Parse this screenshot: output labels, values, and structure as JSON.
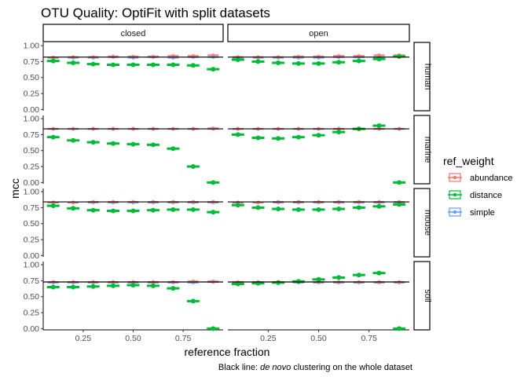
{
  "chart_data": {
    "type": "scatter",
    "title": "OTU Quality: OptiFit with split datasets",
    "xlabel": "reference fraction",
    "ylabel": "mcc",
    "caption_prefix": "Black line: ",
    "caption_italic": "de novo",
    "caption_suffix": " clustering on the whole dataset",
    "legend_title": "ref_weight",
    "legend_placement": "right",
    "columns": [
      "closed",
      "open"
    ],
    "rows": [
      "human",
      "marine",
      "mouse",
      "soil"
    ],
    "xlim": [
      0.05,
      0.95
    ],
    "ylim": [
      -0.02,
      1.05
    ],
    "x_ticks": [
      0.25,
      0.5,
      0.75
    ],
    "x_tick_labels": [
      "0.25",
      "0.50",
      "0.75"
    ],
    "y_ticks": [
      0,
      0.25,
      0.5,
      0.75,
      1.0
    ],
    "y_tick_labels": [
      "0.00",
      "0.25",
      "0.50",
      "0.75",
      "1.00"
    ],
    "x": [
      0.1,
      0.2,
      0.3,
      0.4,
      0.5,
      0.6,
      0.7,
      0.8,
      0.9
    ],
    "grid": false,
    "colors": {
      "abundance": "#F8766D",
      "distance": "#00BA38",
      "simple": "#619CFF",
      "reference_line": "#000000"
    },
    "series_names": [
      "abundance",
      "distance",
      "simple"
    ],
    "denovo_reference": {
      "human": 0.82,
      "marine": 0.84,
      "mouse": 0.84,
      "soil": 0.73
    },
    "panels": [
      {
        "column": "closed",
        "row": "human",
        "abundance": [
          0.81,
          0.82,
          0.82,
          0.83,
          0.83,
          0.83,
          0.84,
          0.84,
          0.85
        ],
        "distance": [
          0.76,
          0.73,
          0.71,
          0.7,
          0.7,
          0.7,
          0.7,
          0.69,
          0.63
        ],
        "simple": [
          0.81,
          0.81,
          0.81,
          0.82,
          0.81,
          0.82,
          0.81,
          0.82,
          0.82
        ]
      },
      {
        "column": "open",
        "row": "human",
        "abundance": [
          0.82,
          0.82,
          0.82,
          0.83,
          0.83,
          0.84,
          0.84,
          0.85,
          0.85
        ],
        "distance": [
          0.78,
          0.75,
          0.73,
          0.72,
          0.72,
          0.74,
          0.76,
          0.79,
          0.83
        ],
        "simple": [
          0.81,
          0.81,
          0.81,
          0.81,
          0.81,
          0.82,
          0.82,
          0.82,
          0.83
        ]
      },
      {
        "column": "closed",
        "row": "marine",
        "abundance": [
          0.84,
          0.84,
          0.84,
          0.84,
          0.84,
          0.84,
          0.84,
          0.84,
          0.85
        ],
        "distance": [
          0.71,
          0.66,
          0.63,
          0.61,
          0.6,
          0.59,
          0.53,
          0.25,
          0.0
        ],
        "simple": [
          0.84,
          0.84,
          0.84,
          0.84,
          0.84,
          0.84,
          0.84,
          0.84,
          0.84
        ]
      },
      {
        "column": "open",
        "row": "marine",
        "abundance": [
          0.84,
          0.84,
          0.84,
          0.84,
          0.84,
          0.84,
          0.84,
          0.84,
          0.84
        ],
        "distance": [
          0.75,
          0.7,
          0.69,
          0.71,
          0.74,
          0.79,
          0.84,
          0.89,
          0.0
        ],
        "simple": [
          0.84,
          0.84,
          0.84,
          0.84,
          0.84,
          0.84,
          0.84,
          0.84,
          0.84
        ]
      },
      {
        "column": "closed",
        "row": "mouse",
        "abundance": [
          0.83,
          0.83,
          0.84,
          0.84,
          0.84,
          0.84,
          0.84,
          0.84,
          0.84
        ],
        "distance": [
          0.78,
          0.74,
          0.71,
          0.7,
          0.7,
          0.71,
          0.72,
          0.72,
          0.68
        ],
        "simple": [
          0.83,
          0.83,
          0.83,
          0.83,
          0.83,
          0.83,
          0.83,
          0.83,
          0.83
        ]
      },
      {
        "column": "open",
        "row": "mouse",
        "abundance": [
          0.83,
          0.83,
          0.84,
          0.84,
          0.84,
          0.84,
          0.84,
          0.84,
          0.84
        ],
        "distance": [
          0.79,
          0.75,
          0.73,
          0.72,
          0.72,
          0.73,
          0.75,
          0.77,
          0.8
        ],
        "simple": [
          0.83,
          0.83,
          0.83,
          0.83,
          0.83,
          0.83,
          0.83,
          0.83,
          0.83
        ]
      },
      {
        "column": "closed",
        "row": "soil",
        "abundance": [
          0.73,
          0.73,
          0.73,
          0.73,
          0.73,
          0.73,
          0.73,
          0.74,
          0.74
        ],
        "distance": [
          0.65,
          0.65,
          0.66,
          0.67,
          0.68,
          0.67,
          0.63,
          0.43,
          0.0
        ],
        "simple": [
          0.72,
          0.72,
          0.72,
          0.72,
          0.72,
          0.72,
          0.72,
          0.72,
          0.73
        ]
      },
      {
        "column": "open",
        "row": "soil",
        "abundance": [
          0.73,
          0.73,
          0.73,
          0.73,
          0.73,
          0.73,
          0.73,
          0.73,
          0.73
        ],
        "distance": [
          0.7,
          0.71,
          0.72,
          0.74,
          0.77,
          0.8,
          0.84,
          0.87,
          0.0
        ],
        "simple": [
          0.72,
          0.72,
          0.72,
          0.72,
          0.72,
          0.72,
          0.72,
          0.72,
          0.72
        ]
      }
    ]
  }
}
